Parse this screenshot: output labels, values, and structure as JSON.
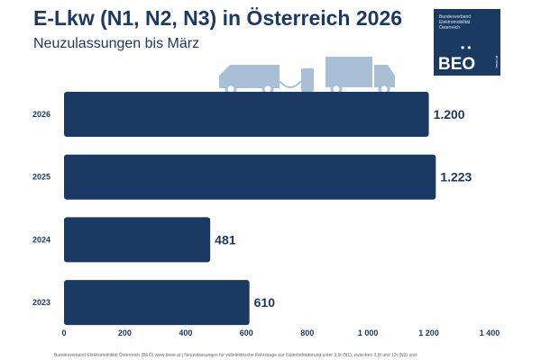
{
  "header": {
    "title": "E-Lkw (N1, N2, N3) in Österreich 2026",
    "subtitle": "Neuzulassungen bis März"
  },
  "logo": {
    "text": "Bundesverband Elektromobilität Österreich",
    "mark": "BEO",
    "url": "beoe.at"
  },
  "footer": "Bundesverband Elektromobilität Österreich (BEÖ) www.beoe.at | Neuzulassungen für vollelektrische Fahrzeuge zur Güterbeförderung unter 3,5t (N1), zwischen 3,5t und 12t (N2) und",
  "colors": {
    "bar": "#1b3a63",
    "icon": "#a9bfd6"
  },
  "chart_data": {
    "type": "bar",
    "orientation": "horizontal",
    "categories": [
      "2026",
      "2025",
      "2024",
      "2023"
    ],
    "values": [
      1200,
      1223,
      481,
      610
    ],
    "data_labels": [
      "1.200",
      "1.223",
      "481",
      "610"
    ],
    "xlim": [
      0,
      1400
    ],
    "xticks": [
      0,
      200,
      400,
      600,
      800,
      1000,
      1200,
      1400
    ],
    "xtick_labels": [
      "0",
      "200",
      "400",
      "600",
      "800",
      "1 000",
      "1 200",
      "1 400"
    ],
    "grid": false
  }
}
